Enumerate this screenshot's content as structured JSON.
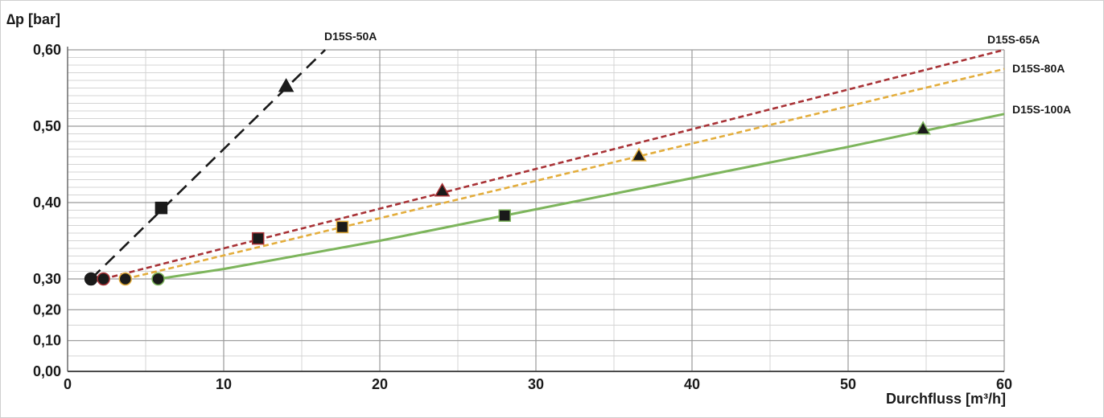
{
  "chart_data": {
    "type": "line",
    "title": "",
    "ylabel": "∆p [bar]",
    "xlabel": "Durchfluss [m³/h]",
    "xlim": [
      0,
      60
    ],
    "x_ticks": [
      0,
      10,
      20,
      30,
      40,
      50,
      60
    ],
    "x_tick_labels": [
      "0",
      "10",
      "20",
      "30",
      "40",
      "50",
      "60"
    ],
    "y_ticks": [
      0.0,
      0.1,
      0.2,
      0.3,
      0.4,
      0.5,
      0.6
    ],
    "y_tick_labels": [
      "0,00",
      "0,10",
      "0,20",
      "0,30",
      "0,40",
      "0,50",
      "0,60"
    ],
    "y_scale": "broken: 0,00–0,30 compressed, 0,30–0,60 expanded",
    "grid": true,
    "legend": "inline labels at line ends",
    "series": [
      {
        "name": "D15S-50A",
        "color": "#1a1a1a",
        "dash": "long-dash",
        "line": [
          [
            1.5,
            0.3
          ],
          [
            16.5,
            0.6
          ]
        ],
        "markers": [
          {
            "x": 1.5,
            "y": 0.3,
            "shape": "circle"
          },
          {
            "x": 6.0,
            "y": 0.393,
            "shape": "square"
          },
          {
            "x": 14.0,
            "y": 0.552,
            "shape": "triangle"
          }
        ]
      },
      {
        "name": "D15S-65A",
        "color": "#a83236",
        "dash": "short-dash",
        "line": [
          [
            2.3,
            0.3
          ],
          [
            60,
            0.6
          ]
        ],
        "markers": [
          {
            "x": 2.3,
            "y": 0.3,
            "shape": "circle"
          },
          {
            "x": 12.2,
            "y": 0.353,
            "shape": "square"
          },
          {
            "x": 24.0,
            "y": 0.415,
            "shape": "triangle"
          }
        ]
      },
      {
        "name": "D15S-80A",
        "color": "#e3ad3c",
        "dash": "short-dash",
        "line": [
          [
            3.7,
            0.3
          ],
          [
            60,
            0.575
          ]
        ],
        "markers": [
          {
            "x": 3.7,
            "y": 0.3,
            "shape": "circle"
          },
          {
            "x": 17.6,
            "y": 0.368,
            "shape": "square"
          },
          {
            "x": 36.6,
            "y": 0.461,
            "shape": "triangle"
          }
        ]
      },
      {
        "name": "D15S-100A",
        "color": "#7db55c",
        "dash": "solid",
        "line": [
          [
            5.8,
            0.3
          ],
          [
            10,
            0.313
          ],
          [
            20,
            0.35
          ],
          [
            28,
            0.383
          ],
          [
            40,
            0.432
          ],
          [
            50,
            0.473
          ],
          [
            60,
            0.516
          ]
        ],
        "markers": [
          {
            "x": 5.8,
            "y": 0.3,
            "shape": "circle"
          },
          {
            "x": 28.0,
            "y": 0.383,
            "shape": "square"
          },
          {
            "x": 54.8,
            "y": 0.496,
            "shape": "triangle"
          }
        ]
      }
    ]
  }
}
